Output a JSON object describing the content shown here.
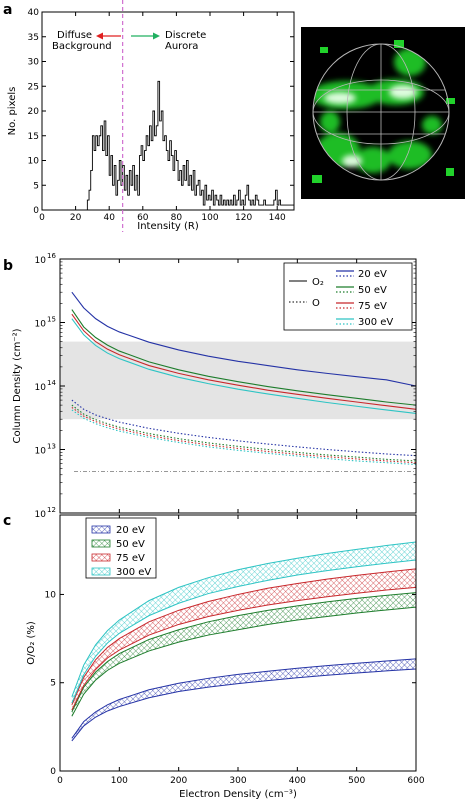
{
  "panel_letters": [
    "a",
    "b",
    "c"
  ],
  "chart_data": [
    {
      "type": "bar",
      "panel": "a",
      "xlabel": "Intensity (R)",
      "ylabel": "No. pixels",
      "xlim": [
        0,
        150
      ],
      "ylim": [
        0,
        40
      ],
      "xticks": [
        0,
        20,
        40,
        60,
        80,
        100,
        120,
        140
      ],
      "yticks": [
        0,
        5,
        10,
        15,
        20,
        25,
        30,
        35,
        40
      ],
      "threshold": 48,
      "annotations": {
        "left": [
          "Diffuse",
          "Background"
        ],
        "right": [
          "Discrete",
          "Aurora"
        ]
      },
      "bin_width": 1,
      "histogram": [
        [
          27,
          2
        ],
        [
          28,
          4
        ],
        [
          29,
          8
        ],
        [
          30,
          15
        ],
        [
          31,
          12
        ],
        [
          32,
          15
        ],
        [
          33,
          13
        ],
        [
          34,
          15
        ],
        [
          35,
          17
        ],
        [
          36,
          12
        ],
        [
          37,
          18
        ],
        [
          38,
          11
        ],
        [
          39,
          15
        ],
        [
          40,
          7
        ],
        [
          41,
          11
        ],
        [
          42,
          5
        ],
        [
          43,
          9
        ],
        [
          44,
          3
        ],
        [
          45,
          6
        ],
        [
          46,
          10
        ],
        [
          47,
          5
        ],
        [
          48,
          9
        ],
        [
          49,
          4
        ],
        [
          50,
          7
        ],
        [
          51,
          3
        ],
        [
          52,
          8
        ],
        [
          53,
          5
        ],
        [
          54,
          9
        ],
        [
          55,
          4
        ],
        [
          56,
          7
        ],
        [
          57,
          3
        ],
        [
          58,
          11
        ],
        [
          59,
          13
        ],
        [
          60,
          10
        ],
        [
          61,
          12
        ],
        [
          62,
          15
        ],
        [
          63,
          13
        ],
        [
          64,
          17
        ],
        [
          65,
          14
        ],
        [
          66,
          20
        ],
        [
          67,
          15
        ],
        [
          68,
          17
        ],
        [
          69,
          26
        ],
        [
          70,
          18
        ],
        [
          71,
          20
        ],
        [
          72,
          14
        ],
        [
          73,
          15
        ],
        [
          74,
          12
        ],
        [
          75,
          10
        ],
        [
          76,
          14
        ],
        [
          77,
          11
        ],
        [
          78,
          8
        ],
        [
          79,
          12
        ],
        [
          80,
          10
        ],
        [
          81,
          6
        ],
        [
          82,
          8
        ],
        [
          83,
          5
        ],
        [
          84,
          9
        ],
        [
          85,
          6
        ],
        [
          86,
          10
        ],
        [
          87,
          5
        ],
        [
          88,
          7
        ],
        [
          89,
          4
        ],
        [
          90,
          8
        ],
        [
          91,
          3
        ],
        [
          92,
          5
        ],
        [
          93,
          6
        ],
        [
          94,
          3
        ],
        [
          95,
          4
        ],
        [
          96,
          1
        ],
        [
          97,
          5
        ],
        [
          98,
          2
        ],
        [
          99,
          3
        ],
        [
          100,
          2
        ],
        [
          101,
          4
        ],
        [
          102,
          1
        ],
        [
          103,
          3
        ],
        [
          104,
          2
        ],
        [
          105,
          1
        ],
        [
          106,
          3
        ],
        [
          107,
          1
        ],
        [
          108,
          2
        ],
        [
          109,
          1
        ],
        [
          110,
          2
        ],
        [
          111,
          1
        ],
        [
          112,
          2
        ],
        [
          113,
          1
        ],
        [
          114,
          3
        ],
        [
          115,
          1
        ],
        [
          116,
          2
        ],
        [
          117,
          4
        ],
        [
          118,
          1
        ],
        [
          119,
          2
        ],
        [
          120,
          1
        ],
        [
          121,
          3
        ],
        [
          122,
          5
        ],
        [
          123,
          2
        ],
        [
          124,
          1
        ],
        [
          125,
          2
        ],
        [
          126,
          1
        ],
        [
          127,
          3
        ],
        [
          128,
          2
        ],
        [
          129,
          1
        ],
        [
          130,
          1
        ],
        [
          131,
          1
        ],
        [
          132,
          2
        ],
        [
          133,
          1
        ],
        [
          134,
          1
        ],
        [
          135,
          1
        ],
        [
          136,
          1
        ],
        [
          137,
          1
        ],
        [
          138,
          2
        ],
        [
          139,
          4
        ],
        [
          140,
          1
        ],
        [
          141,
          2
        ],
        [
          142,
          1
        ],
        [
          143,
          1
        ],
        [
          144,
          1
        ],
        [
          145,
          1
        ],
        [
          146,
          1
        ],
        [
          147,
          1
        ],
        [
          148,
          1
        ],
        [
          149,
          1
        ]
      ]
    },
    {
      "type": "line",
      "panel": "b",
      "ylabel": "Column Density (cm⁻²)",
      "xlim": [
        0,
        600
      ],
      "ylim": [
        1000000000000.0,
        1e+16
      ],
      "yscale": "log",
      "yticks": [
        {
          "base": "10",
          "exp": "12"
        },
        {
          "base": "10",
          "exp": "13"
        },
        {
          "base": "10",
          "exp": "14"
        },
        {
          "base": "10",
          "exp": "15"
        },
        {
          "base": "10",
          "exp": "16"
        }
      ],
      "shaded_band": [
        30000000000000.0,
        500000000000000.0
      ],
      "detection_limit": 4500000000000.0,
      "x": [
        20,
        40,
        60,
        80,
        100,
        150,
        200,
        250,
        300,
        350,
        400,
        450,
        500,
        550,
        600
      ],
      "series": [
        {
          "name": "20 eV",
          "species": "O2",
          "color": "#2533a6",
          "values": [
            3000000000000000.0,
            1700000000000000.0,
            1150000000000000.0,
            870000000000000.0,
            710000000000000.0,
            490000000000000.0,
            370000000000000.0,
            295000000000000.0,
            245000000000000.0,
            210000000000000.0,
            180000000000000.0,
            158000000000000.0,
            140000000000000.0,
            125000000000000.0,
            100000000000000.0
          ]
        },
        {
          "name": "50 eV",
          "species": "O2",
          "color": "#1e7d2c",
          "values": [
            1600000000000000.0,
            850000000000000.0,
            580000000000000.0,
            440000000000000.0,
            355000000000000.0,
            240000000000000.0,
            180000000000000.0,
            142000000000000.0,
            117000000000000.0,
            98000000000000.0,
            84000000000000.0,
            73000000000000.0,
            64000000000000.0,
            56000000000000.0,
            50000000000000.0
          ]
        },
        {
          "name": "75 eV",
          "species": "O2",
          "color": "#c8282c",
          "values": [
            1350000000000000.0,
            740000000000000.0,
            500000000000000.0,
            380000000000000.0,
            310000000000000.0,
            210000000000000.0,
            158000000000000.0,
            125000000000000.0,
            103000000000000.0,
            86000000000000.0,
            74000000000000.0,
            64000000000000.0,
            56000000000000.0,
            49000000000000.0,
            43000000000000.0
          ]
        },
        {
          "name": "300 eV",
          "species": "O2",
          "color": "#2ec4c4",
          "values": [
            1150000000000000.0,
            640000000000000.0,
            435000000000000.0,
            330000000000000.0,
            270000000000000.0,
            183000000000000.0,
            137000000000000.0,
            109000000000000.0,
            89000000000000.0,
            75000000000000.0,
            64000000000000.0,
            55000000000000.0,
            48000000000000.0,
            42000000000000.0,
            37000000000000.0
          ]
        },
        {
          "name": "20 eV",
          "species": "O",
          "color": "#2533a6",
          "values": [
            60000000000000.0,
            43000000000000.0,
            35000000000000.0,
            30500000000000.0,
            27000000000000.0,
            21500000000000.0,
            18000000000000.0,
            15500000000000.0,
            13700000000000.0,
            12200000000000.0,
            11000000000000.0,
            10000000000000.0,
            9200000000000.0,
            8500000000000.0,
            8000000000000.0
          ]
        },
        {
          "name": "50 eV",
          "species": "O",
          "color": "#1e7d2c",
          "values": [
            50000000000000.0,
            36000000000000.0,
            29500000000000.0,
            25500000000000.0,
            22500000000000.0,
            17800000000000.0,
            14800000000000.0,
            12700000000000.0,
            11200000000000.0,
            10000000000000.0,
            9000000000000.0,
            8200000000000.0,
            7600000000000.0,
            7000000000000.0,
            6600000000000.0
          ]
        },
        {
          "name": "75 eV",
          "species": "O",
          "color": "#c8282c",
          "values": [
            46000000000000.0,
            33500000000000.0,
            27500000000000.0,
            23800000000000.0,
            21000000000000.0,
            16600000000000.0,
            13800000000000.0,
            11800000000000.0,
            10400000000000.0,
            9300000000000.0,
            8400000000000.0,
            7700000000000.0,
            7100000000000.0,
            6600000000000.0,
            6200000000000.0
          ]
        },
        {
          "name": "300 eV",
          "species": "O",
          "color": "#2ec4c4",
          "values": [
            42000000000000.0,
            31000000000000.0,
            25500000000000.0,
            22000000000000.0,
            19500000000000.0,
            15500000000000.0,
            12900000000000.0,
            11000000000000.0,
            9700000000000.0,
            8700000000000.0,
            7900000000000.0,
            7200000000000.0,
            6600000000000.0,
            6200000000000.0,
            5800000000000.0
          ]
        }
      ],
      "legend": {
        "linestyles": [
          {
            "label": "O₂",
            "style": "solid"
          },
          {
            "label": "O",
            "style": "dotted"
          }
        ],
        "energies": [
          {
            "label": "20 eV",
            "color": "#2533a6"
          },
          {
            "label": "50 eV",
            "color": "#1e7d2c"
          },
          {
            "label": "75 eV",
            "color": "#c8282c"
          },
          {
            "label": "300 eV",
            "color": "#2ec4c4"
          }
        ]
      }
    },
    {
      "type": "area",
      "panel": "c",
      "xlabel": "Electron Density (cm⁻³)",
      "ylabel": "O/O₂ (%)",
      "xlim": [
        0,
        600
      ],
      "ylim": [
        0,
        14.5
      ],
      "xticks": [
        0,
        100,
        200,
        300,
        400,
        500,
        600
      ],
      "yticks": [
        0,
        5,
        10
      ],
      "x": [
        20,
        40,
        60,
        80,
        100,
        150,
        200,
        250,
        300,
        350,
        400,
        450,
        500,
        550,
        600
      ],
      "series": [
        {
          "name": "20 eV",
          "color": "#2533a6",
          "lower": [
            1.7,
            2.55,
            3.05,
            3.4,
            3.65,
            4.15,
            4.5,
            4.75,
            4.95,
            5.12,
            5.28,
            5.42,
            5.55,
            5.67,
            5.78
          ],
          "upper": [
            1.85,
            2.8,
            3.35,
            3.75,
            4.05,
            4.6,
            4.97,
            5.25,
            5.47,
            5.65,
            5.82,
            5.97,
            6.1,
            6.23,
            6.35
          ]
        },
        {
          "name": "50 eV",
          "color": "#1e7d2c",
          "lower": [
            3.1,
            4.35,
            5.15,
            5.7,
            6.1,
            6.8,
            7.3,
            7.7,
            8.0,
            8.3,
            8.55,
            8.75,
            8.95,
            9.12,
            9.28
          ],
          "upper": [
            3.35,
            4.75,
            5.6,
            6.2,
            6.65,
            7.45,
            8.0,
            8.45,
            8.8,
            9.1,
            9.35,
            9.58,
            9.78,
            9.95,
            10.1
          ]
        },
        {
          "name": "75 eV",
          "color": "#c8282c",
          "lower": [
            3.45,
            4.85,
            5.75,
            6.4,
            6.85,
            7.7,
            8.3,
            8.75,
            9.1,
            9.4,
            9.65,
            9.87,
            10.07,
            10.25,
            10.4
          ],
          "upper": [
            3.75,
            5.3,
            6.3,
            7.0,
            7.5,
            8.45,
            9.1,
            9.6,
            10.0,
            10.35,
            10.62,
            10.87,
            11.08,
            11.27,
            11.45
          ]
        },
        {
          "name": "300 eV",
          "color": "#2ec4c4",
          "lower": [
            3.85,
            5.45,
            6.5,
            7.25,
            7.8,
            8.8,
            9.5,
            10.05,
            10.45,
            10.8,
            11.1,
            11.35,
            11.57,
            11.77,
            11.95
          ],
          "upper": [
            4.2,
            6.0,
            7.15,
            7.95,
            8.55,
            9.65,
            10.4,
            10.95,
            11.4,
            11.75,
            12.05,
            12.32,
            12.55,
            12.77,
            12.97
          ]
        }
      ]
    }
  ],
  "image_panel": {
    "background": "#000000",
    "blob_color": "#21d22b",
    "highlight_color": "#e8ffe8",
    "grid_color": "#b8b8b8"
  }
}
